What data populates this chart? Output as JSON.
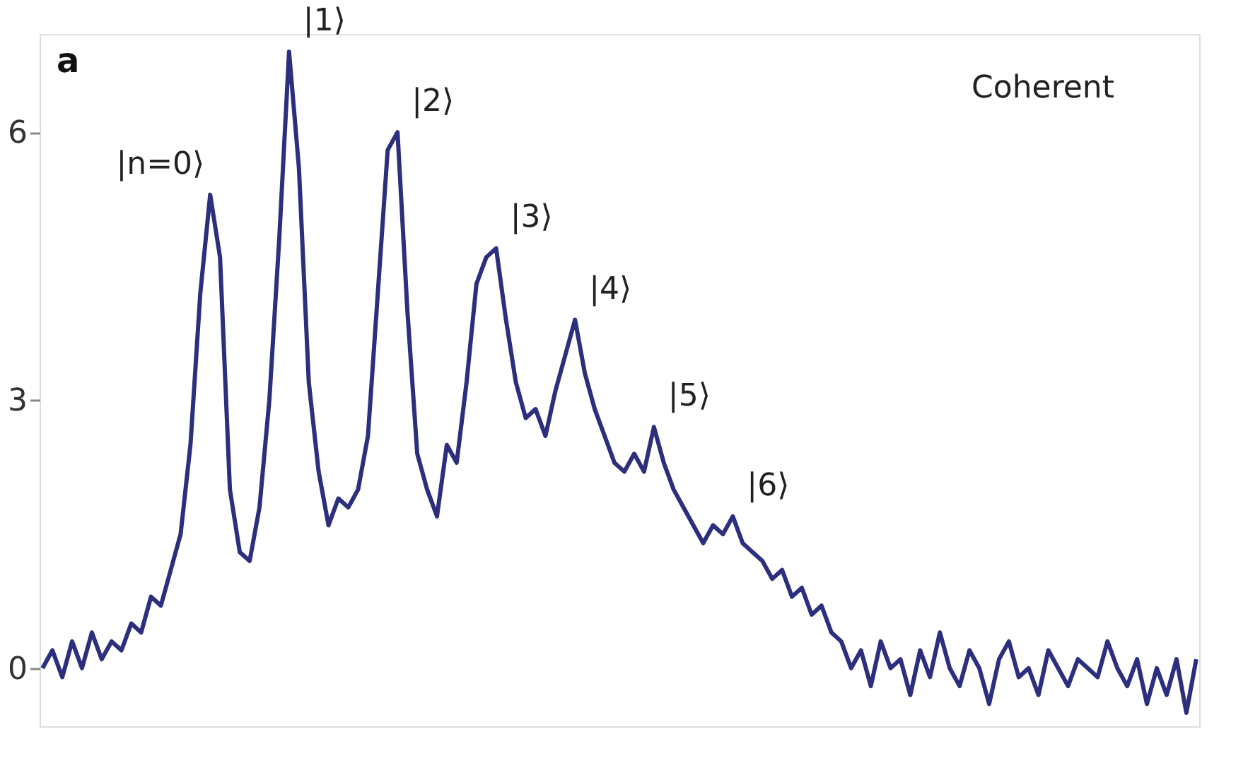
{
  "chart_data": {
    "type": "line",
    "categories": [
      null,
      null,
      null,
      null,
      null,
      null,
      null,
      null,
      null,
      null,
      null,
      null,
      null,
      null,
      null,
      null,
      null,
      null,
      null,
      null,
      null,
      null,
      null,
      null,
      null,
      null,
      null,
      null,
      null,
      null,
      null,
      null,
      null,
      null,
      null,
      null,
      null,
      null,
      null,
      null,
      null,
      null,
      null,
      null,
      null,
      null,
      null,
      null,
      null,
      null,
      null,
      null,
      null,
      null,
      null,
      null,
      null,
      null,
      null,
      null,
      null,
      null,
      null,
      null,
      null,
      null,
      null,
      null,
      null,
      null,
      null,
      null,
      null,
      null,
      null,
      null,
      null,
      null,
      null,
      null,
      null,
      null,
      null,
      null,
      null,
      null,
      null,
      null,
      null,
      null,
      null,
      null,
      null,
      null,
      null,
      null,
      null,
      null,
      null,
      null,
      null,
      null,
      null,
      null,
      null,
      null,
      null,
      null,
      null,
      null,
      null,
      null,
      null,
      null,
      null,
      null,
      null,
      null
    ],
    "series": [
      {
        "color": "#2b2f7d",
        "values": [
          0.0,
          0.2,
          -0.1,
          0.3,
          0.0,
          0.4,
          0.1,
          0.3,
          0.2,
          0.5,
          0.4,
          0.8,
          0.7,
          1.1,
          1.5,
          2.5,
          4.2,
          5.3,
          4.6,
          2.0,
          1.3,
          1.2,
          1.8,
          3.0,
          4.8,
          6.9,
          5.6,
          3.2,
          2.2,
          1.6,
          1.9,
          1.8,
          2.0,
          2.6,
          4.2,
          5.8,
          6.0,
          4.0,
          2.4,
          2.0,
          1.7,
          2.5,
          2.3,
          3.2,
          4.3,
          4.6,
          4.7,
          3.9,
          3.2,
          2.8,
          2.9,
          2.6,
          3.1,
          3.5,
          3.9,
          3.3,
          2.9,
          2.6,
          2.3,
          2.2,
          2.4,
          2.2,
          2.7,
          2.3,
          2.0,
          1.8,
          1.6,
          1.4,
          1.6,
          1.5,
          1.7,
          1.4,
          1.3,
          1.2,
          1.0,
          1.1,
          0.8,
          0.9,
          0.6,
          0.7,
          0.4,
          0.3,
          0.0,
          0.2,
          -0.2,
          0.3,
          0.0,
          0.1,
          -0.3,
          0.2,
          -0.1,
          0.4,
          0.0,
          -0.2,
          0.2,
          0.0,
          -0.4,
          0.1,
          0.3,
          -0.1,
          0.0,
          -0.3,
          0.2,
          0.0,
          -0.2,
          0.1,
          0.0,
          -0.1,
          0.3,
          0.0,
          -0.2,
          0.1,
          -0.4,
          0.0,
          -0.3,
          0.1,
          -0.5,
          0.1
        ]
      }
    ],
    "ylim": [
      -0.65,
      7.1
    ],
    "yticks": [
      0,
      3,
      6
    ],
    "grid": false,
    "line_style": "solid",
    "marker": "none",
    "tick_labels": "y",
    "annotations": [
      "a",
      "|n=0⟩",
      "|1⟩",
      "|2⟩",
      "|3⟩",
      "|4⟩",
      "|5⟩",
      "|6⟩",
      "Coherent"
    ]
  }
}
